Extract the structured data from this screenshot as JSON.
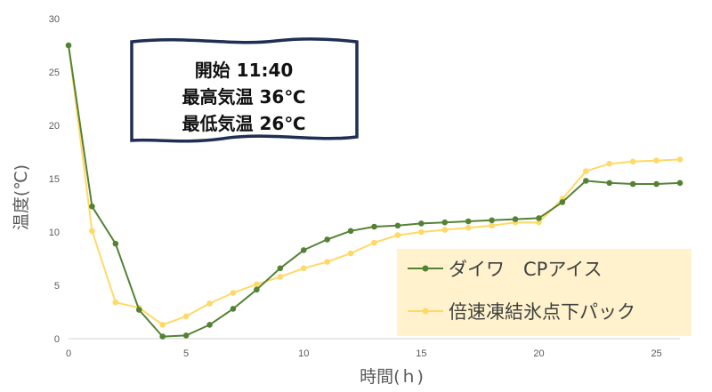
{
  "chart_data": {
    "type": "line",
    "xlabel": "時間(ｈ)",
    "ylabel": "温度(℃)",
    "xlim": [
      0,
      26
    ],
    "ylim": [
      0,
      30
    ],
    "x_ticks": [
      0,
      5,
      10,
      15,
      20,
      25
    ],
    "y_ticks": [
      0,
      5,
      10,
      15,
      20,
      25,
      30
    ],
    "grid": "none",
    "legend_position": "bottom-right",
    "annotation": {
      "lines": [
        "開始 11:40",
        "最高気温 36℃",
        "最低気温 26℃"
      ],
      "position": "top-left"
    },
    "series": [
      {
        "name": "ダイワ　CPアイス",
        "color": "#548235",
        "x": [
          0,
          1,
          2,
          3,
          4,
          5,
          6,
          7,
          8,
          9,
          10,
          11,
          12,
          13,
          14,
          15,
          16,
          17,
          18,
          19,
          20,
          21,
          22,
          23,
          24,
          25,
          26
        ],
        "values": [
          27.5,
          12.4,
          8.9,
          2.7,
          0.2,
          0.3,
          1.3,
          2.8,
          4.6,
          6.6,
          8.3,
          9.3,
          10.1,
          10.5,
          10.6,
          10.8,
          10.9,
          11.0,
          11.1,
          11.2,
          11.3,
          12.8,
          14.8,
          14.6,
          14.5,
          14.5,
          14.6
        ]
      },
      {
        "name": "倍速凍結氷点下パック",
        "color": "#FFD966",
        "x": [
          0,
          1,
          2,
          3,
          4,
          5,
          6,
          7,
          8,
          9,
          10,
          11,
          12,
          13,
          14,
          15,
          16,
          17,
          18,
          19,
          20,
          21,
          22,
          23,
          24,
          25,
          26
        ],
        "values": [
          27.5,
          10.1,
          3.4,
          2.9,
          1.3,
          2.1,
          3.3,
          4.3,
          5.1,
          5.8,
          6.6,
          7.2,
          8.0,
          9.0,
          9.7,
          10.0,
          10.2,
          10.4,
          10.6,
          10.9,
          10.9,
          13.1,
          15.7,
          16.4,
          16.6,
          16.7,
          16.8
        ]
      }
    ]
  }
}
